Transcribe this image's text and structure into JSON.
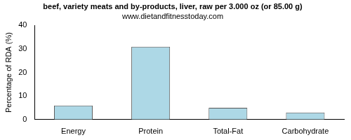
{
  "chart_data": {
    "type": "bar",
    "title": "beef, variety meats and by-products, liver, raw per 3.000 oz (or 85.00 g)",
    "subtitle": "www.dietandfitnesstoday.com",
    "y_label": "Percentage of RDA (%)",
    "categories": [
      "Energy",
      "Protein",
      "Total-Fat",
      "Carbohydrate"
    ],
    "values": [
      6,
      31,
      5,
      3
    ],
    "color": "#add8e6",
    "ylim": [
      0,
      40
    ],
    "yticks": [
      0,
      10,
      20,
      30,
      40
    ],
    "grid": false
  }
}
